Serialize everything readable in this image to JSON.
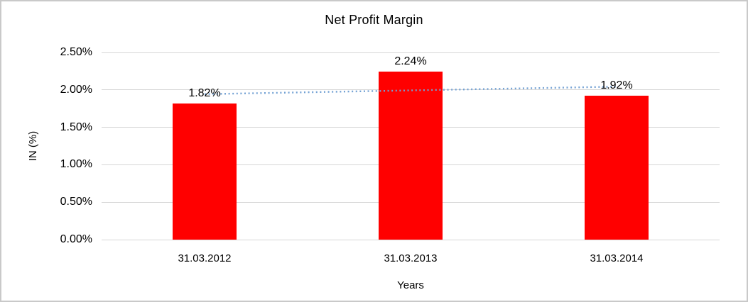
{
  "window": {
    "background": "#ffffff",
    "frame_border_color": "#c9c9c9"
  },
  "chart_data": {
    "type": "bar",
    "title": "Net Profit Margin",
    "xlabel": "Years",
    "ylabel": "IN (%)",
    "categories": [
      "31.03.2012",
      "31.03.2013",
      "31.03.2014"
    ],
    "values": [
      1.82,
      2.24,
      1.92
    ],
    "value_labels": [
      "1.82%",
      "2.24%",
      "1.92%"
    ],
    "ylim": [
      0,
      2.5
    ],
    "ytick_step": 0.5,
    "ytick_labels": [
      "0.00%",
      "0.50%",
      "1.00%",
      "1.50%",
      "2.00%",
      "2.50%"
    ],
    "grid": true,
    "legend": "none",
    "bar_color": "#ff0000",
    "gridline_color": "#d6d6d6",
    "text_color": "#000000",
    "trendline": {
      "type": "linear",
      "style": "dotted",
      "color": "#74a2d4"
    }
  }
}
